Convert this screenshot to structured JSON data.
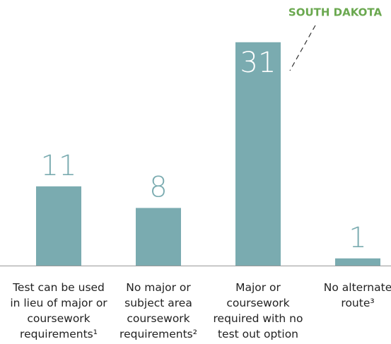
{
  "chart_data": {
    "type": "bar",
    "categories": [
      "Test can be used in lieu of major or coursework requirements¹",
      "No major or subject area coursework requirements²",
      "Major or coursework required with no test out option",
      "No alternate route³"
    ],
    "values": [
      11,
      8,
      31,
      1
    ],
    "color": "#7aabb0",
    "annotation": "SOUTH DAKOTA",
    "annotation_color": "#6aa84f"
  }
}
